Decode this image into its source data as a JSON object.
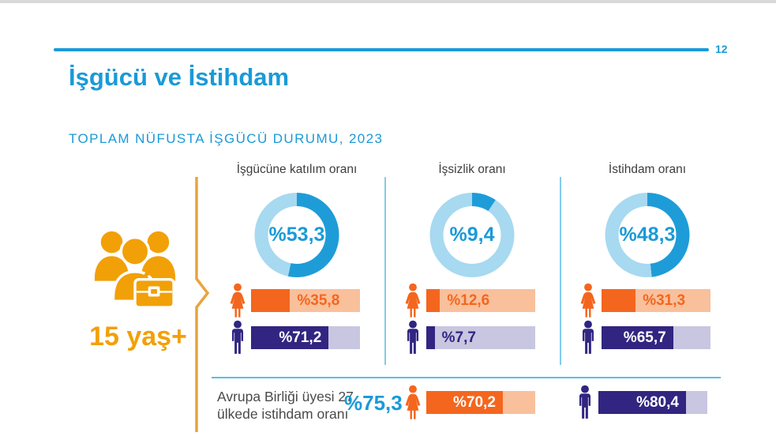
{
  "page": {
    "number": "12",
    "title": "İşgücü ve İstihdam",
    "subtitle": "TOPLAM NÜFUSTA İŞGÜCÜ DURUMU, 2023"
  },
  "age_group": {
    "label": "15 yaş+",
    "icon": "people-with-briefcase-icon"
  },
  "colors": {
    "accent_blue": "#1A9AD7",
    "donut_fill": "#1E9CD8",
    "donut_track": "#A7D9F0",
    "female_fill": "#F4661E",
    "female_track": "#F9C09C",
    "male_fill": "#312581",
    "male_track": "#C8C6E0",
    "amber": "#F2A007",
    "bracket_amber": "#E9A43C",
    "divider_blue": "#82CBEC",
    "sep_blue": "#55BFEA",
    "header_gray": "#3E3E3D",
    "text_gray": "#4A4A49"
  },
  "chart_data": {
    "type": "donut+bar",
    "title": "TOPLAM NÜFUSTA İŞGÜCÜ DURUMU, 2023",
    "unit": "percent",
    "population": "15 yaş+",
    "series_legend": [
      {
        "name": "female",
        "icon": "female-icon",
        "color": "#F4661E"
      },
      {
        "name": "male",
        "icon": "male-icon",
        "color": "#312581"
      }
    ],
    "groups": [
      {
        "header": "İşgücüne katılım oranı",
        "total": {
          "value": 53.3,
          "label": "%53,3"
        },
        "female": {
          "value": 35.8,
          "label": "%35,8"
        },
        "male": {
          "value": 71.2,
          "label": "%71,2"
        }
      },
      {
        "header": "İşsizlik oranı",
        "total": {
          "value": 9.4,
          "label": "%9,4"
        },
        "female": {
          "value": 12.6,
          "label": "%12,6"
        },
        "male": {
          "value": 7.7,
          "label": "%7,7"
        }
      },
      {
        "header": "İstihdam oranı",
        "total": {
          "value": 48.3,
          "label": "%48,3"
        },
        "female": {
          "value": 31.3,
          "label": "%31,3"
        },
        "male": {
          "value": 65.7,
          "label": "%65,7"
        }
      }
    ],
    "eu": {
      "label_line1": "Avrupa Birliği üyesi 27",
      "label_line2": "ülkede istihdam oranı",
      "total": {
        "value": 75.3,
        "label": "%75,3"
      },
      "female": {
        "value": 70.2,
        "label": "%70,2"
      },
      "male": {
        "value": 80.4,
        "label": "%80,4"
      }
    }
  }
}
